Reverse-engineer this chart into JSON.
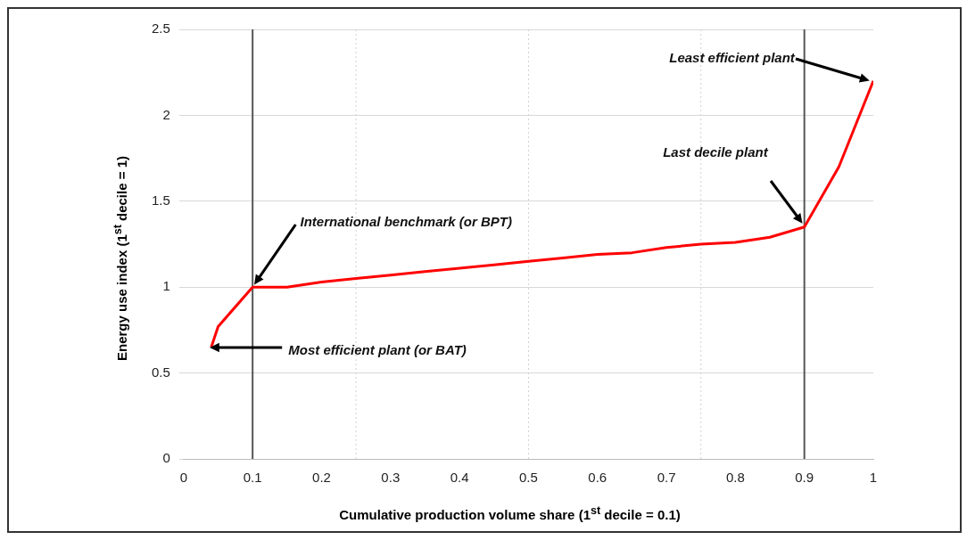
{
  "chart_data": {
    "type": "line",
    "xlabel": "Cumulative production volume share (1$^{st}$ decile = 0.1)",
    "ylabel": "Energy use index (1$^{st}$ decile = 1)",
    "series": [
      {
        "color": "#ff0000",
        "x": [
          0.04,
          0.05,
          0.1,
          0.15,
          0.2,
          0.25,
          0.3,
          0.35,
          0.4,
          0.45,
          0.5,
          0.55,
          0.6,
          0.65,
          0.7,
          0.75,
          0.8,
          0.85,
          0.9,
          0.95,
          1
        ],
        "values": [
          0.65,
          0.77,
          1.0,
          1.0,
          1.03,
          1.05,
          1.07,
          1.09,
          1.11,
          1.13,
          1.15,
          1.17,
          1.19,
          1.2,
          1.23,
          1.25,
          1.26,
          1.29,
          1.35,
          1.7,
          2.2
        ]
      }
    ],
    "xlim": [
      0,
      1
    ],
    "xticks": [
      0,
      0.1,
      0.2,
      0.3,
      0.4,
      0.5,
      0.6,
      0.7,
      0.8,
      0.9,
      1
    ],
    "ylim": [
      0,
      2.5
    ],
    "yticks": [
      0,
      0.5,
      1,
      1.5,
      2,
      2.5
    ],
    "grid": "y",
    "marker": "none",
    "line_style": "solid",
    "legend": false,
    "ref_lines": [
      {
        "axis": "x",
        "value": 0.1,
        "color": "#555555",
        "line_style": "solid"
      },
      {
        "axis": "x",
        "value": 0.9,
        "color": "#555555",
        "line_style": "solid"
      },
      {
        "axis": "x",
        "value": 0.25,
        "color": "#d0d0d0",
        "line_style": "dotted"
      },
      {
        "axis": "x",
        "value": 0.5,
        "color": "#d0d0d0",
        "line_style": "dotted"
      },
      {
        "axis": "x",
        "value": 0.75,
        "color": "#d0d0d0",
        "line_style": "dotted"
      }
    ],
    "annotations": [
      "International benchmark (or BPT)",
      "Most efficient plant (or BAT)",
      "Last decile plant",
      "Least efficient plant"
    ]
  }
}
